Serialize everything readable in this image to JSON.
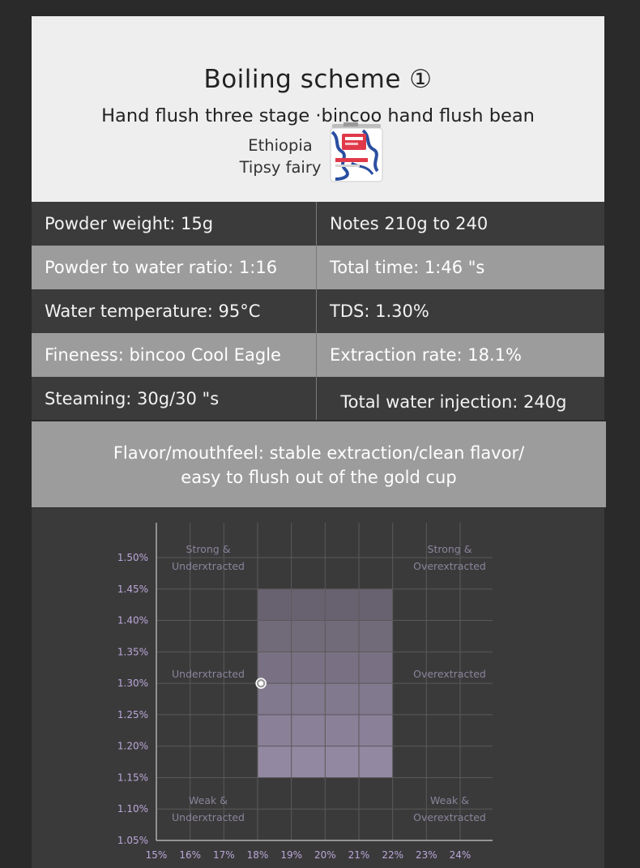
{
  "header": {
    "title": "Boiling scheme ①",
    "subtitle": "Hand flush three stage  ·bincoo hand flush bean",
    "origin_line1": "Ethiopia",
    "origin_line2": "Tipsy fairy"
  },
  "params": [
    {
      "left": "Powder weight: 15g",
      "right": "Notes 210g to 240"
    },
    {
      "left": "Powder to water ratio: 1:16",
      "right": "Total time: 1:46 \"s"
    },
    {
      "left": "Water temperature: 95°C",
      "right": "TDS:  1.30%"
    },
    {
      "left": "Fineness: bincoo Cool Eagle",
      "right": "Extraction rate: 18.1%"
    },
    {
      "left": "Steaming: 30g/30 \"s",
      "right": "  Total water injection: 240g"
    }
  ],
  "flavor": {
    "line1": "Flavor/mouthfeel: stable extraction/clean flavor/",
    "line2": "easy to flush out of the gold cup"
  },
  "chart_data": {
    "type": "scatter",
    "x_ticks": [
      "15%",
      "16%",
      "17%",
      "18%",
      "19%",
      "20%",
      "21%",
      "22%",
      "23%",
      "24%"
    ],
    "y_ticks": [
      "1.05%",
      "1.10%",
      "1.15%",
      "1.20%",
      "1.25%",
      "1.30%",
      "1.35%",
      "1.40%",
      "1.45%",
      "1.50%"
    ],
    "xlim": [
      15,
      24
    ],
    "ylim": [
      1.05,
      1.5
    ],
    "ideal_zone": {
      "x": [
        18,
        22
      ],
      "y": [
        1.15,
        1.45
      ]
    },
    "point": {
      "x": 18.1,
      "y": 1.3
    },
    "zone_labels": [
      {
        "line1": "Strong &",
        "line2": "Underxtracted",
        "pos": "top-left"
      },
      {
        "line1": "Strong &",
        "line2": "Overextracted",
        "pos": "top-right"
      },
      {
        "line1": "",
        "line2": "Underxtracted",
        "pos": "middle-left"
      },
      {
        "line1": "",
        "line2": "Overextracted",
        "pos": "middle-right"
      },
      {
        "line1": "Weak &",
        "line2": "Underxtracted",
        "pos": "bottom-left"
      },
      {
        "line1": "Weak &",
        "line2": "Overextracted",
        "pos": "bottom-right"
      }
    ],
    "colors": {
      "zone": "#c8b8e0",
      "label": "#8a849a",
      "tick": "#b9a8d8",
      "grid": "#5a595a",
      "axis": "#c9c9c9"
    }
  }
}
